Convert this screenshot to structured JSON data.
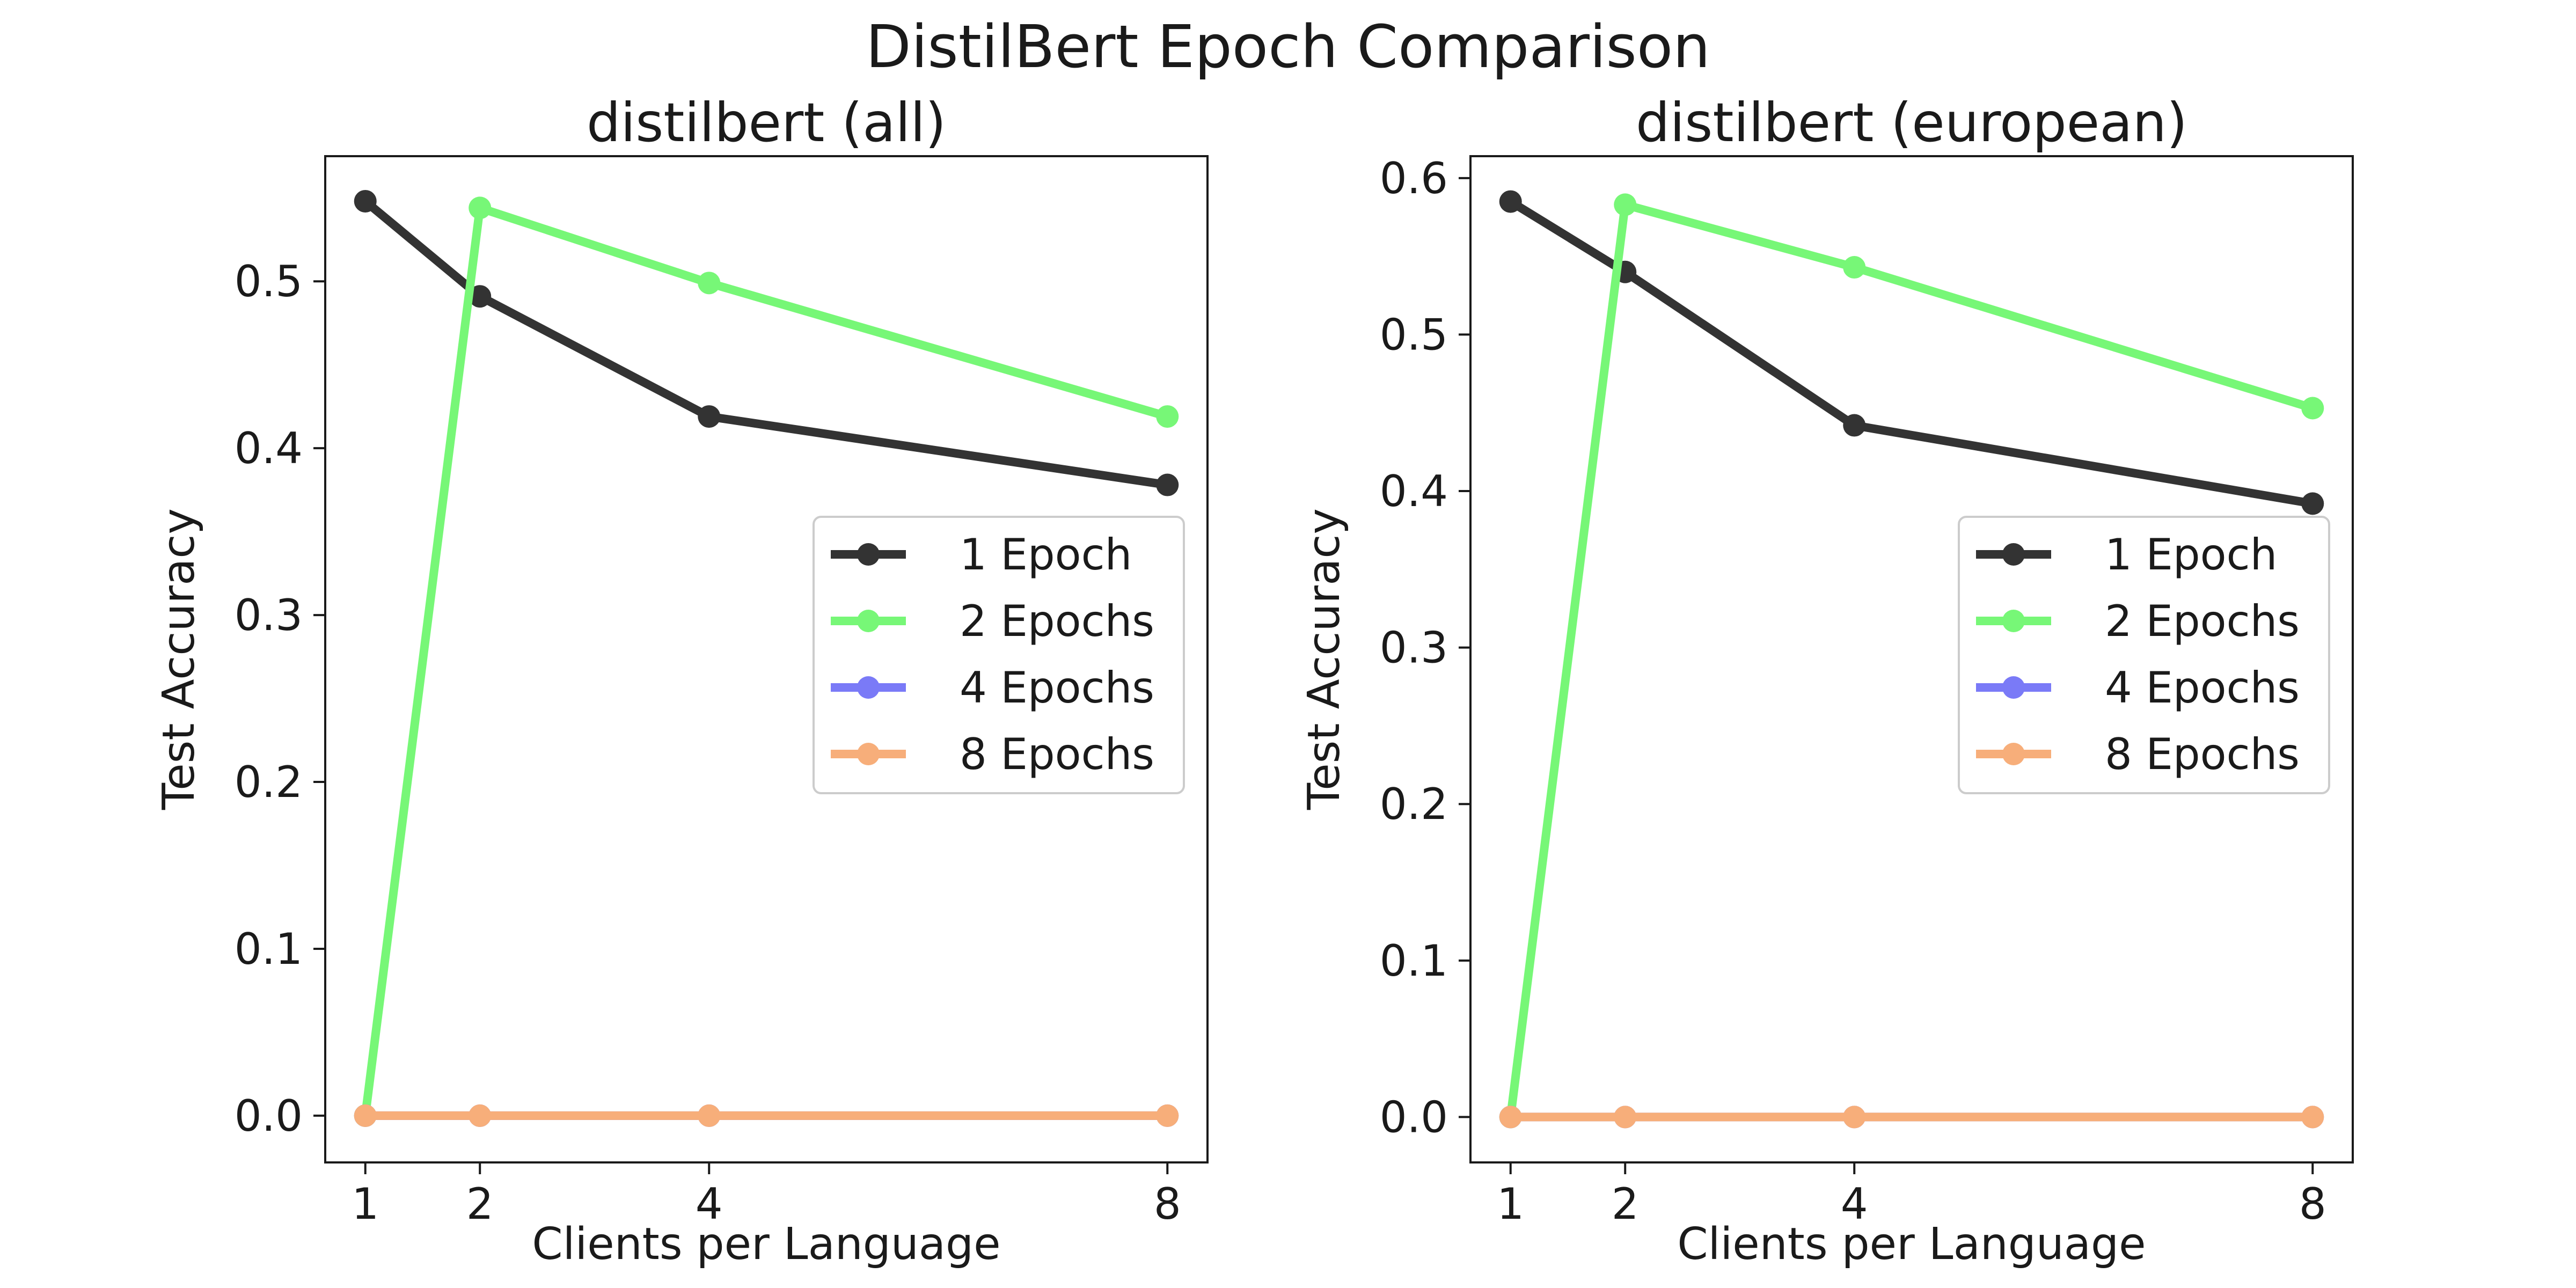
{
  "figure_title": "DistilBert Epoch Comparison",
  "chart_data": [
    {
      "type": "line",
      "title": "distilbert (all)",
      "xlabel": "Clients per Language",
      "ylabel": "Test Accuracy",
      "x": [
        1,
        2,
        4,
        8
      ],
      "xticks": [
        "1",
        "2",
        "4",
        "8"
      ],
      "yticks": [
        "0.0",
        "0.1",
        "0.2",
        "0.3",
        "0.4",
        "0.5"
      ],
      "ylim": [
        -0.028,
        0.575
      ],
      "xlim": [
        0.65,
        8.35
      ],
      "grid": false,
      "legend_position": "center-right",
      "series": [
        {
          "name": "1 Epoch",
          "color": "#333333",
          "values": [
            0.548,
            0.491,
            0.419,
            0.378
          ]
        },
        {
          "name": "2 Epochs",
          "color": "#77f777",
          "values": [
            0.0,
            0.544,
            0.499,
            0.419
          ]
        },
        {
          "name": "4 Epochs",
          "color": "#7a7af7",
          "values": [
            0.0,
            0.0,
            0.0,
            0.0
          ]
        },
        {
          "name": "8 Epochs",
          "color": "#f7ae7a",
          "values": [
            0.0,
            0.0,
            0.0,
            0.0
          ]
        }
      ]
    },
    {
      "type": "line",
      "title": "distilbert (european)",
      "xlabel": "Clients per Language",
      "ylabel": "Test Accuracy",
      "x": [
        1,
        2,
        4,
        8
      ],
      "xticks": [
        "1",
        "2",
        "4",
        "8"
      ],
      "yticks": [
        "0.0",
        "0.1",
        "0.2",
        "0.3",
        "0.4",
        "0.5",
        "0.6"
      ],
      "ylim": [
        -0.029,
        0.614
      ],
      "xlim": [
        0.65,
        8.35
      ],
      "grid": false,
      "legend_position": "center-right",
      "series": [
        {
          "name": "1 Epoch",
          "color": "#333333",
          "values": [
            0.585,
            0.54,
            0.442,
            0.392
          ]
        },
        {
          "name": "2 Epochs",
          "color": "#77f777",
          "values": [
            0.0,
            0.583,
            0.543,
            0.453
          ]
        },
        {
          "name": "4 Epochs",
          "color": "#7a7af7",
          "values": [
            0.0,
            0.0,
            0.0,
            0.0
          ]
        },
        {
          "name": "8 Epochs",
          "color": "#f7ae7a",
          "values": [
            0.0,
            0.0,
            0.0,
            0.0
          ]
        }
      ]
    }
  ]
}
